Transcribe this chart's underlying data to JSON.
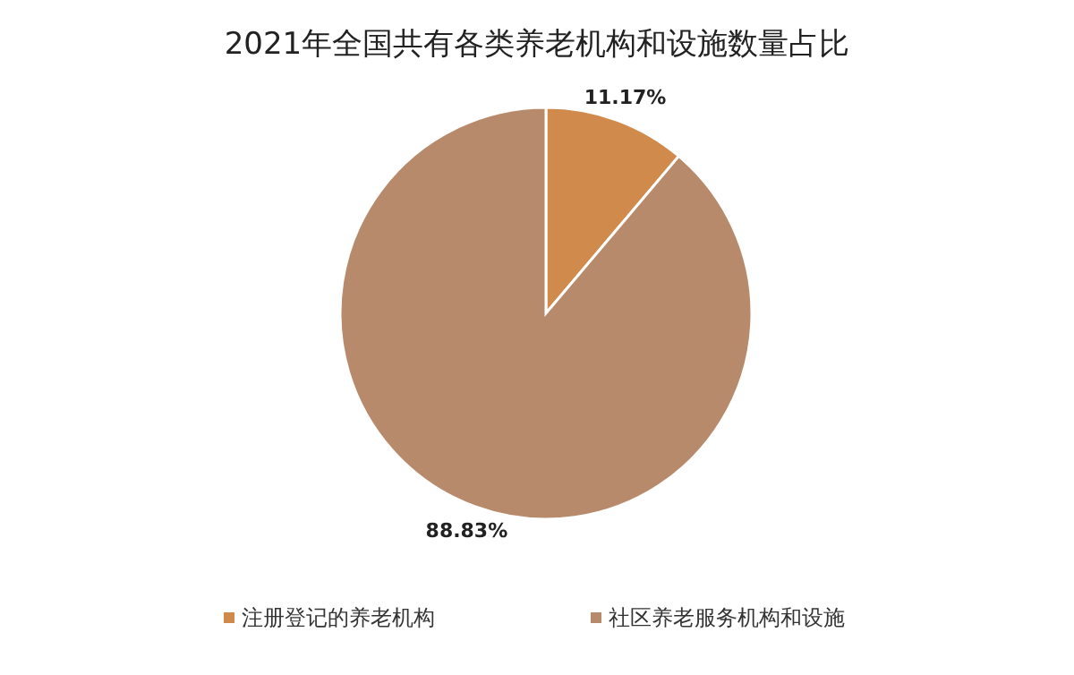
{
  "chart_data": {
    "type": "pie",
    "title": "2021年全国共有各类养老机构和设施数量占比",
    "categories": [
      "注册登记的养老机构",
      "社区养老服务机构和设施"
    ],
    "values": [
      11.17,
      88.83
    ],
    "colors": [
      "#d08a4c",
      "#b88a6c"
    ],
    "value_labels": [
      "11.17%",
      "88.83%"
    ],
    "legend": "bottom"
  }
}
